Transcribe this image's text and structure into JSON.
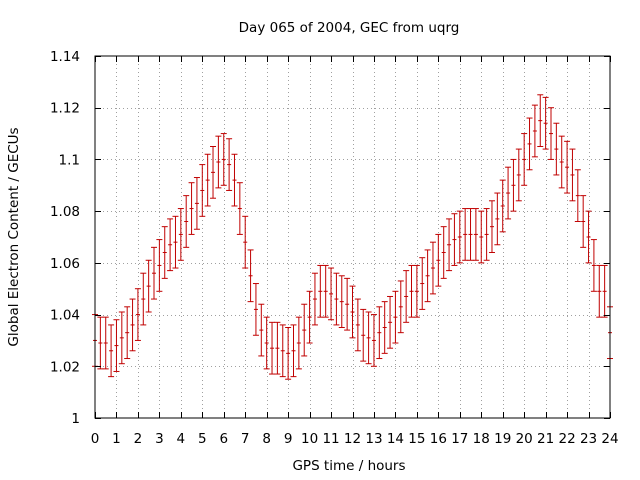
{
  "chart_data": {
    "type": "scatter",
    "title": "Day 065 of 2004, GEC from uqrg",
    "xlabel": "GPS time / hours",
    "ylabel": "Global Electron Content / GECUs",
    "xlim": [
      0,
      24
    ],
    "ylim": [
      1,
      1.14
    ],
    "xticks": [
      "0",
      "1",
      "2",
      "3",
      "4",
      "5",
      "6",
      "7",
      "8",
      "9",
      "10",
      "11",
      "12",
      "13",
      "14",
      "15",
      "16",
      "17",
      "18",
      "19",
      "20",
      "21",
      "22",
      "23",
      "24"
    ],
    "yticks": [
      "1",
      "1.02",
      "1.04",
      "1.06",
      "1.08",
      "1.1",
      "1.12",
      "1.14"
    ],
    "grid": true,
    "error": 0.01,
    "series": [
      {
        "color": "#c00000",
        "x": [
          0.0,
          0.25,
          0.5,
          0.75,
          1.0,
          1.25,
          1.5,
          1.75,
          2.0,
          2.25,
          2.5,
          2.75,
          3.0,
          3.25,
          3.5,
          3.75,
          4.0,
          4.25,
          4.5,
          4.75,
          5.0,
          5.25,
          5.5,
          5.75,
          6.0,
          6.25,
          6.5,
          6.75,
          7.0,
          7.25,
          7.5,
          7.75,
          8.0,
          8.25,
          8.5,
          8.75,
          9.0,
          9.25,
          9.5,
          9.75,
          10.0,
          10.25,
          10.5,
          10.75,
          11.0,
          11.25,
          11.5,
          11.75,
          12.0,
          12.25,
          12.5,
          12.75,
          13.0,
          13.25,
          13.5,
          13.75,
          14.0,
          14.25,
          14.5,
          14.75,
          15.0,
          15.25,
          15.5,
          15.75,
          16.0,
          16.25,
          16.5,
          16.75,
          17.0,
          17.25,
          17.5,
          17.75,
          18.0,
          18.25,
          18.5,
          18.75,
          19.0,
          19.25,
          19.5,
          19.75,
          20.0,
          20.25,
          20.5,
          20.75,
          21.0,
          21.25,
          21.5,
          21.75,
          22.0,
          22.25,
          22.5,
          22.75,
          23.0,
          23.25,
          23.5,
          23.75,
          24.0
        ],
        "y": [
          1.03,
          1.029,
          1.029,
          1.026,
          1.028,
          1.031,
          1.033,
          1.036,
          1.04,
          1.046,
          1.051,
          1.056,
          1.059,
          1.064,
          1.067,
          1.068,
          1.071,
          1.076,
          1.081,
          1.083,
          1.088,
          1.092,
          1.095,
          1.099,
          1.1,
          1.098,
          1.092,
          1.081,
          1.068,
          1.055,
          1.042,
          1.034,
          1.029,
          1.027,
          1.027,
          1.026,
          1.025,
          1.026,
          1.029,
          1.034,
          1.039,
          1.046,
          1.049,
          1.049,
          1.048,
          1.046,
          1.045,
          1.044,
          1.041,
          1.036,
          1.032,
          1.031,
          1.03,
          1.033,
          1.035,
          1.037,
          1.039,
          1.043,
          1.047,
          1.049,
          1.049,
          1.052,
          1.055,
          1.058,
          1.061,
          1.064,
          1.067,
          1.069,
          1.07,
          1.071,
          1.071,
          1.071,
          1.07,
          1.071,
          1.074,
          1.077,
          1.082,
          1.087,
          1.09,
          1.094,
          1.1,
          1.106,
          1.111,
          1.115,
          1.114,
          1.11,
          1.104,
          1.099,
          1.097,
          1.094,
          1.086,
          1.076,
          1.07,
          1.059,
          1.049,
          1.049,
          1.033
        ]
      }
    ]
  }
}
